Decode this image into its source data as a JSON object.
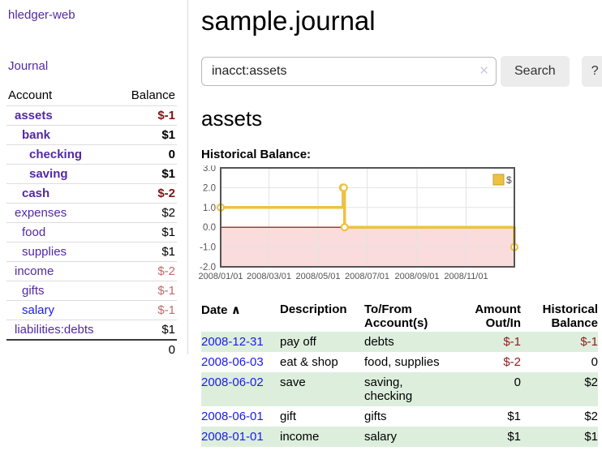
{
  "app": {
    "brand": "hledger-web",
    "nav_journal": "Journal"
  },
  "sidebar": {
    "headers": {
      "account": "Account",
      "balance": "Balance"
    },
    "accounts": [
      {
        "name": "assets",
        "indent": 0,
        "bold": true,
        "link_color": "purple",
        "balance": "$-1",
        "balance_style": "neg-strong"
      },
      {
        "name": "bank",
        "indent": 1,
        "bold": true,
        "link_color": "purple",
        "balance": "$1",
        "balance_style": "pos"
      },
      {
        "name": "checking",
        "indent": 2,
        "bold": true,
        "link_color": "purple",
        "balance": "0",
        "balance_style": "pos"
      },
      {
        "name": "saving",
        "indent": 2,
        "bold": true,
        "link_color": "purple",
        "balance": "$1",
        "balance_style": "pos"
      },
      {
        "name": "cash",
        "indent": 1,
        "bold": true,
        "link_color": "purple",
        "balance": "$-2",
        "balance_style": "neg-strong"
      },
      {
        "name": "expenses",
        "indent": 0,
        "bold": false,
        "link_color": "purple",
        "balance": "$2",
        "balance_style": "pos"
      },
      {
        "name": "food",
        "indent": 1,
        "bold": false,
        "link_color": "purple",
        "balance": "$1",
        "balance_style": "pos"
      },
      {
        "name": "supplies",
        "indent": 1,
        "bold": false,
        "link_color": "purple",
        "balance": "$1",
        "balance_style": "pos"
      },
      {
        "name": "income",
        "indent": 0,
        "bold": false,
        "link_color": "purple",
        "balance": "$-2",
        "balance_style": "neg-soft"
      },
      {
        "name": "gifts",
        "indent": 1,
        "bold": false,
        "link_color": "purple",
        "balance": "$-1",
        "balance_style": "neg-soft"
      },
      {
        "name": "salary",
        "indent": 1,
        "bold": false,
        "link_color": "blue",
        "balance": "$-1",
        "balance_style": "neg-soft"
      },
      {
        "name": "liabilities:debts",
        "indent": 0,
        "bold": false,
        "link_color": "purple",
        "balance": "$1",
        "balance_style": "pos"
      }
    ],
    "total": "0"
  },
  "header": {
    "title": "sample.journal"
  },
  "search": {
    "value": "inacct:assets",
    "clear_icon": "✕",
    "button_label": "Search",
    "help_label": "?"
  },
  "register": {
    "heading": "assets",
    "chart_label": "Historical Balance:"
  },
  "chart_data": {
    "type": "line",
    "step": true,
    "title": "Historical Balance:",
    "legend": "$",
    "legend_position": "top-right",
    "grid": true,
    "xrange": [
      "2008-01-01",
      "2008-12-31"
    ],
    "ylim": [
      -2,
      3
    ],
    "ytick_labels": [
      "3.0",
      "2.0",
      "1.0",
      "0.0",
      "-1.0",
      "-2.0"
    ],
    "xtick_labels": [
      "2008/01/01",
      "2008/03/01",
      "2008/05/01",
      "2008/07/01",
      "2008/09/01",
      "2008/11/01"
    ],
    "series": [
      {
        "name": "$",
        "color": "#EDC240",
        "points": [
          [
            "2008-01-01",
            1
          ],
          [
            "2008-06-01",
            2
          ],
          [
            "2008-06-02",
            2
          ],
          [
            "2008-06-03",
            0
          ],
          [
            "2008-12-31",
            -1
          ]
        ]
      }
    ],
    "colors": {
      "negative_region": "#fadcdc",
      "zero_line": "#8b0000",
      "gridline": "#e3e3e3",
      "border": "#545454",
      "tick_text": "#545454"
    }
  },
  "table": {
    "headers": {
      "date": "Date",
      "sort_icon": "∧",
      "description": "Description",
      "accounts": "To/From Account(s)",
      "amount": "Amount Out/In",
      "balance": "Historical Balance"
    },
    "rows": [
      {
        "date": "2008-12-31",
        "description": "pay off",
        "accounts": "debts",
        "amount": "$-1",
        "amount_negative": true,
        "balance": "$-1",
        "balance_negative": true,
        "shaded": true
      },
      {
        "date": "2008-06-03",
        "description": "eat & shop",
        "accounts": "food, supplies",
        "amount": "$-2",
        "amount_negative": true,
        "balance": "0",
        "balance_negative": false,
        "shaded": false
      },
      {
        "date": "2008-06-02",
        "description": "save",
        "accounts": "saving,\nchecking",
        "amount": "0",
        "amount_negative": false,
        "balance": "$2",
        "balance_negative": false,
        "shaded": true
      },
      {
        "date": "2008-06-01",
        "description": "gift",
        "accounts": "gifts",
        "amount": "$1",
        "amount_negative": false,
        "balance": "$2",
        "balance_negative": false,
        "shaded": false
      },
      {
        "date": "2008-01-01",
        "description": "income",
        "accounts": "salary",
        "amount": "$1",
        "amount_negative": false,
        "balance": "$1",
        "balance_negative": false,
        "shaded": true
      }
    ]
  }
}
